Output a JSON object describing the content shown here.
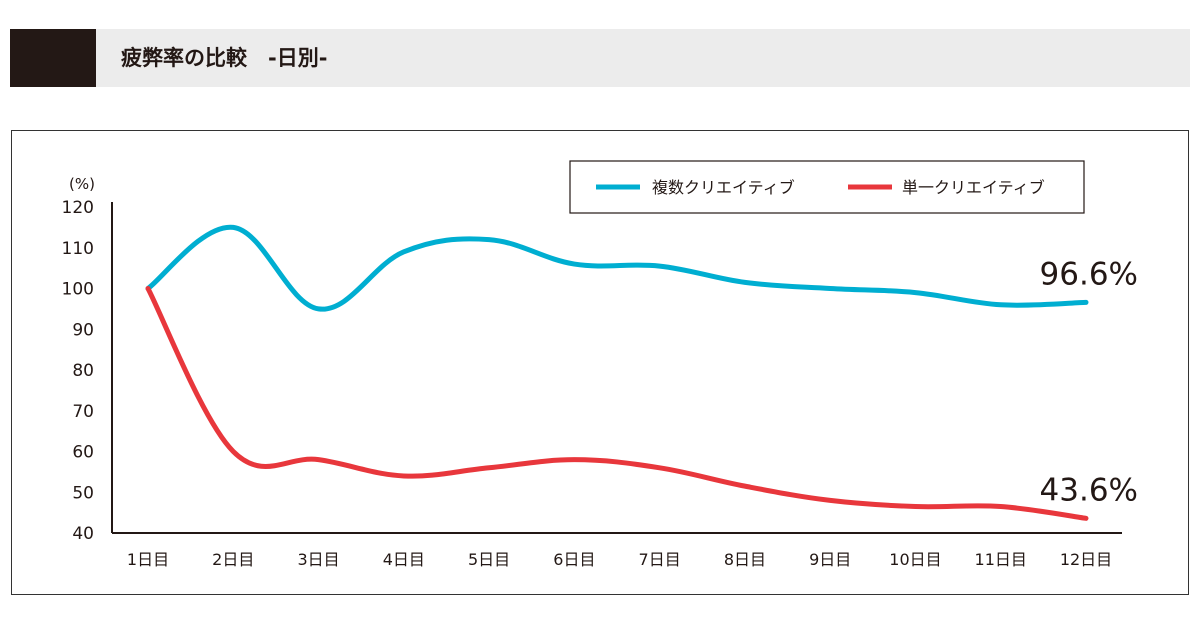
{
  "header": {
    "title": "疲弊率の比較　-日別-"
  },
  "chart_data": {
    "type": "line",
    "ylabel": "(%)",
    "ylim": [
      40,
      120
    ],
    "yticks": [
      40,
      50,
      60,
      70,
      80,
      90,
      100,
      110,
      120
    ],
    "categories": [
      "1日目",
      "2日目",
      "3日目",
      "4日目",
      "5日目",
      "6日目",
      "7日目",
      "8日目",
      "9日目",
      "10日目",
      "11日目",
      "12日目"
    ],
    "legend_position": "top-right",
    "grid": false,
    "series": [
      {
        "name": "複数クリエイティブ",
        "color": "#00aed1",
        "values": [
          100,
          115,
          95,
          109,
          112,
          106,
          105.5,
          101.5,
          100,
          99,
          96,
          96.6
        ],
        "end_label": "96.6%"
      },
      {
        "name": "単一クリエイティブ",
        "color": "#e8373c",
        "values": [
          100,
          60,
          58,
          54,
          56,
          58,
          56,
          51.5,
          48,
          46.5,
          46.5,
          43.6
        ],
        "end_label": "43.6%"
      }
    ]
  }
}
